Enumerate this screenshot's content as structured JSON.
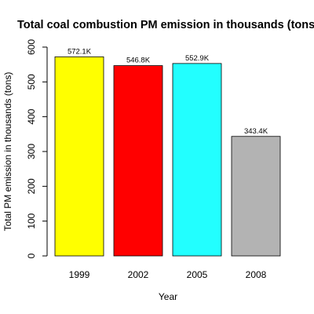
{
  "chart_data": {
    "type": "bar",
    "title": "Total coal combustion PM emission in thousands (tons)",
    "xlabel": "Year",
    "ylabel": "Total PM emission in thousands (tons)",
    "categories": [
      "1999",
      "2002",
      "2005",
      "2008"
    ],
    "values": [
      572.1,
      546.8,
      552.9,
      343.4
    ],
    "data_labels": [
      "572.1K",
      "546.8K",
      "552.9K",
      "343.4K"
    ],
    "colors": [
      "#ffff00",
      "#ff0000",
      "#22ffff",
      "#b3b3b3"
    ],
    "ylim": [
      0,
      600
    ],
    "yticks": [
      0,
      100,
      200,
      300,
      400,
      500,
      600
    ],
    "grid": false,
    "legend": "none"
  }
}
